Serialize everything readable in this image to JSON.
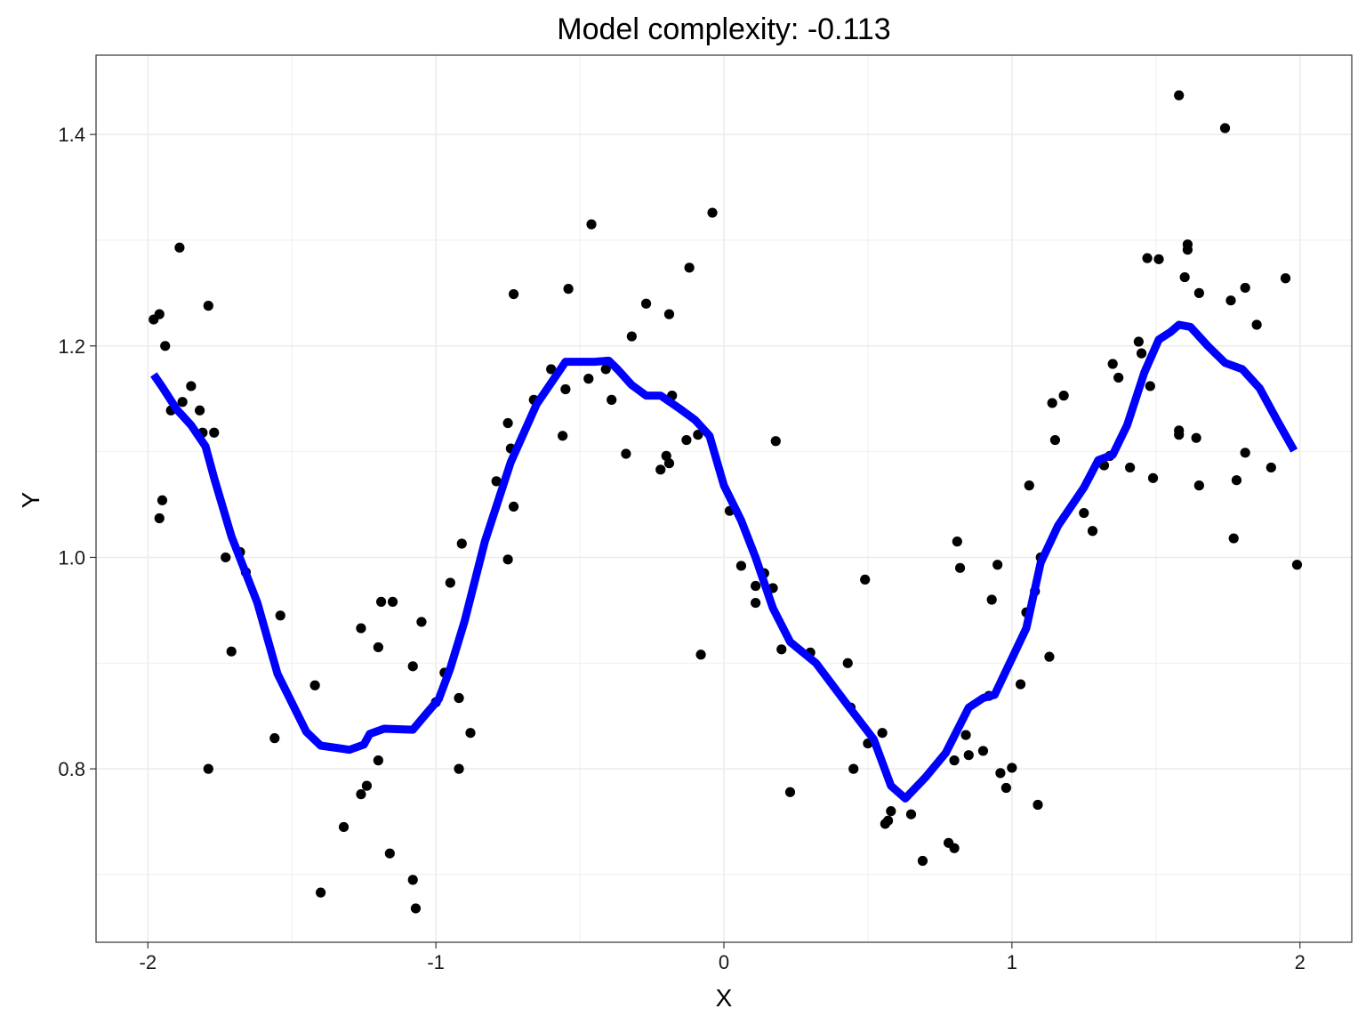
{
  "chart_data": {
    "type": "scatter",
    "title": "Model complexity: -0.113",
    "xlabel": "X",
    "ylabel": "Y",
    "xlim": [
      -2.18,
      2.18
    ],
    "ylim": [
      0.636,
      1.475
    ],
    "x_ticks": [
      -2,
      -1,
      0,
      1,
      2
    ],
    "x_tick_labels": [
      "-2",
      "-1",
      "0",
      "1",
      "2"
    ],
    "y_ticks": [
      0.8,
      1.0,
      1.2,
      1.4
    ],
    "y_tick_labels": [
      "0.8",
      "1.0",
      "1.2",
      "1.4"
    ],
    "grid": true,
    "colors": {
      "points": "#000000",
      "line": "#0000ff",
      "grid": "#ebebeb",
      "panel_border": "#333333"
    },
    "series": [
      {
        "type": "scatter",
        "points": [
          [
            -1.98,
            1.225
          ],
          [
            -1.96,
            1.23
          ],
          [
            -1.96,
            1.037
          ],
          [
            -1.95,
            1.054
          ],
          [
            -1.94,
            1.2
          ],
          [
            -1.92,
            1.139
          ],
          [
            -1.89,
            1.293
          ],
          [
            -1.88,
            1.147
          ],
          [
            -1.85,
            1.162
          ],
          [
            -1.82,
            1.139
          ],
          [
            -1.81,
            1.118
          ],
          [
            -1.79,
            1.238
          ],
          [
            -1.79,
            0.8
          ],
          [
            -1.77,
            1.118
          ],
          [
            -1.73,
            1.0
          ],
          [
            -1.71,
            0.911
          ],
          [
            -1.68,
            1.005
          ],
          [
            -1.66,
            0.986
          ],
          [
            -1.56,
            0.829
          ],
          [
            -1.54,
            0.945
          ],
          [
            -1.42,
            0.879
          ],
          [
            -1.4,
            0.683
          ],
          [
            -1.32,
            0.745
          ],
          [
            -1.26,
            0.776
          ],
          [
            -1.26,
            0.933
          ],
          [
            -1.24,
            0.784
          ],
          [
            -1.2,
            0.915
          ],
          [
            -1.2,
            0.808
          ],
          [
            -1.19,
            0.958
          ],
          [
            -1.16,
            0.72
          ],
          [
            -1.15,
            0.958
          ],
          [
            -1.08,
            0.897
          ],
          [
            -1.08,
            0.695
          ],
          [
            -1.07,
            0.668
          ],
          [
            -1.05,
            0.939
          ],
          [
            -1.0,
            0.863
          ],
          [
            -0.97,
            0.891
          ],
          [
            -0.95,
            0.976
          ],
          [
            -0.92,
            0.867
          ],
          [
            -0.92,
            0.8
          ],
          [
            -0.91,
            1.013
          ],
          [
            -0.88,
            0.834
          ],
          [
            -0.79,
            1.072
          ],
          [
            -0.75,
            1.127
          ],
          [
            -0.75,
            0.998
          ],
          [
            -0.74,
            1.103
          ],
          [
            -0.73,
            1.249
          ],
          [
            -0.73,
            1.048
          ],
          [
            -0.66,
            1.149
          ],
          [
            -0.6,
            1.178
          ],
          [
            -0.56,
            1.115
          ],
          [
            -0.55,
            1.159
          ],
          [
            -0.54,
            1.254
          ],
          [
            -0.47,
            1.169
          ],
          [
            -0.46,
            1.315
          ],
          [
            -0.41,
            1.178
          ],
          [
            -0.39,
            1.149
          ],
          [
            -0.34,
            1.098
          ],
          [
            -0.32,
            1.209
          ],
          [
            -0.27,
            1.24
          ],
          [
            -0.22,
            1.083
          ],
          [
            -0.2,
            1.096
          ],
          [
            -0.19,
            1.23
          ],
          [
            -0.19,
            1.089
          ],
          [
            -0.18,
            1.153
          ],
          [
            -0.13,
            1.111
          ],
          [
            -0.12,
            1.274
          ],
          [
            -0.09,
            1.116
          ],
          [
            -0.08,
            0.908
          ],
          [
            -0.04,
            1.326
          ],
          [
            0.02,
            1.044
          ],
          [
            0.06,
            0.992
          ],
          [
            0.11,
            0.973
          ],
          [
            0.11,
            0.957
          ],
          [
            0.14,
            0.985
          ],
          [
            0.17,
            0.971
          ],
          [
            0.18,
            1.11
          ],
          [
            0.2,
            0.913
          ],
          [
            0.23,
            0.778
          ],
          [
            0.3,
            0.91
          ],
          [
            0.43,
            0.9
          ],
          [
            0.44,
            0.858
          ],
          [
            0.45,
            0.8
          ],
          [
            0.49,
            0.979
          ],
          [
            0.5,
            0.824
          ],
          [
            0.55,
            0.834
          ],
          [
            0.56,
            0.748
          ],
          [
            0.57,
            0.751
          ],
          [
            0.58,
            0.76
          ],
          [
            0.65,
            0.757
          ],
          [
            0.69,
            0.713
          ],
          [
            0.78,
            0.73
          ],
          [
            0.8,
            0.725
          ],
          [
            0.8,
            0.808
          ],
          [
            0.81,
            1.015
          ],
          [
            0.82,
            0.99
          ],
          [
            0.84,
            0.832
          ],
          [
            0.85,
            0.813
          ],
          [
            0.9,
            0.817
          ],
          [
            0.92,
            0.869
          ],
          [
            0.93,
            0.96
          ],
          [
            0.95,
            0.993
          ],
          [
            0.96,
            0.796
          ],
          [
            0.98,
            0.782
          ],
          [
            1.0,
            0.801
          ],
          [
            1.03,
            0.88
          ],
          [
            1.05,
            0.948
          ],
          [
            1.06,
            1.068
          ],
          [
            1.08,
            0.968
          ],
          [
            1.09,
            0.766
          ],
          [
            1.1,
            1.0
          ],
          [
            1.13,
            0.906
          ],
          [
            1.14,
            1.146
          ],
          [
            1.15,
            1.111
          ],
          [
            1.18,
            1.153
          ],
          [
            1.25,
            1.042
          ],
          [
            1.28,
            1.025
          ],
          [
            1.32,
            1.087
          ],
          [
            1.34,
            1.096
          ],
          [
            1.35,
            1.183
          ],
          [
            1.37,
            1.17
          ],
          [
            1.41,
            1.085
          ],
          [
            1.44,
            1.204
          ],
          [
            1.45,
            1.193
          ],
          [
            1.47,
            1.283
          ],
          [
            1.48,
            1.162
          ],
          [
            1.49,
            1.075
          ],
          [
            1.51,
            1.282
          ],
          [
            1.58,
            1.437
          ],
          [
            1.58,
            1.12
          ],
          [
            1.58,
            1.116
          ],
          [
            1.6,
            1.265
          ],
          [
            1.61,
            1.291
          ],
          [
            1.61,
            1.296
          ],
          [
            1.64,
            1.113
          ],
          [
            1.65,
            1.068
          ],
          [
            1.65,
            1.25
          ],
          [
            1.74,
            1.406
          ],
          [
            1.76,
            1.243
          ],
          [
            1.77,
            1.018
          ],
          [
            1.78,
            1.073
          ],
          [
            1.81,
            1.099
          ],
          [
            1.81,
            1.255
          ],
          [
            1.85,
            1.22
          ],
          [
            1.9,
            1.085
          ],
          [
            1.95,
            1.264
          ],
          [
            1.99,
            0.993
          ]
        ]
      },
      {
        "type": "line",
        "points": [
          [
            -1.98,
            1.173
          ],
          [
            -1.95,
            1.161
          ],
          [
            -1.9,
            1.14
          ],
          [
            -1.85,
            1.125
          ],
          [
            -1.8,
            1.105
          ],
          [
            -1.77,
            1.075
          ],
          [
            -1.71,
            1.02
          ],
          [
            -1.62,
            0.957
          ],
          [
            -1.55,
            0.89
          ],
          [
            -1.45,
            0.835
          ],
          [
            -1.4,
            0.822
          ],
          [
            -1.3,
            0.818
          ],
          [
            -1.25,
            0.823
          ],
          [
            -1.23,
            0.833
          ],
          [
            -1.18,
            0.838
          ],
          [
            -1.08,
            0.837
          ],
          [
            -1.04,
            0.85
          ],
          [
            -0.99,
            0.866
          ],
          [
            -0.95,
            0.895
          ],
          [
            -0.9,
            0.94
          ],
          [
            -0.83,
            1.015
          ],
          [
            -0.74,
            1.09
          ],
          [
            -0.65,
            1.145
          ],
          [
            -0.55,
            1.185
          ],
          [
            -0.45,
            1.185
          ],
          [
            -0.4,
            1.186
          ],
          [
            -0.37,
            1.178
          ],
          [
            -0.32,
            1.163
          ],
          [
            -0.27,
            1.153
          ],
          [
            -0.22,
            1.153
          ],
          [
            -0.15,
            1.14
          ],
          [
            -0.1,
            1.13
          ],
          [
            -0.05,
            1.115
          ],
          [
            0.0,
            1.068
          ],
          [
            0.06,
            1.035
          ],
          [
            0.11,
            1.0
          ],
          [
            0.17,
            0.952
          ],
          [
            0.23,
            0.92
          ],
          [
            0.32,
            0.9
          ],
          [
            0.43,
            0.86
          ],
          [
            0.52,
            0.828
          ],
          [
            0.58,
            0.784
          ],
          [
            0.63,
            0.772
          ],
          [
            0.7,
            0.792
          ],
          [
            0.77,
            0.815
          ],
          [
            0.85,
            0.858
          ],
          [
            0.9,
            0.867
          ],
          [
            0.94,
            0.87
          ],
          [
            0.98,
            0.893
          ],
          [
            1.05,
            0.933
          ],
          [
            1.1,
            0.995
          ],
          [
            1.16,
            1.03
          ],
          [
            1.25,
            1.066
          ],
          [
            1.3,
            1.092
          ],
          [
            1.35,
            1.097
          ],
          [
            1.4,
            1.125
          ],
          [
            1.46,
            1.175
          ],
          [
            1.51,
            1.206
          ],
          [
            1.55,
            1.213
          ],
          [
            1.58,
            1.22
          ],
          [
            1.62,
            1.218
          ],
          [
            1.68,
            1.2
          ],
          [
            1.74,
            1.184
          ],
          [
            1.8,
            1.178
          ],
          [
            1.86,
            1.16
          ],
          [
            1.92,
            1.13
          ],
          [
            1.98,
            1.101
          ]
        ]
      }
    ]
  }
}
